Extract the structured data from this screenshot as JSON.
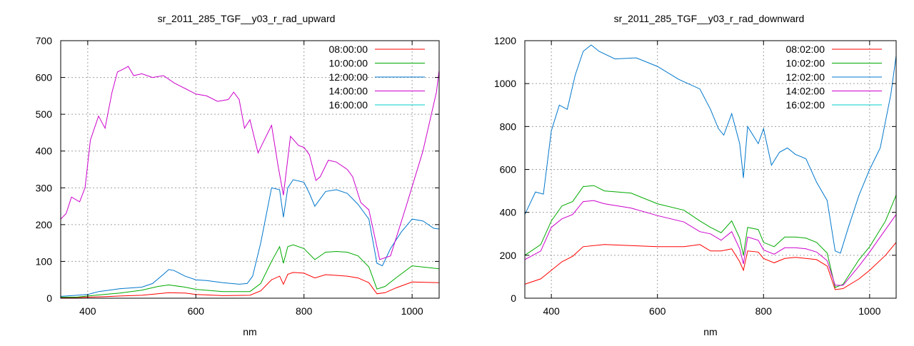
{
  "chart_data": [
    {
      "type": "line",
      "title": "sr_2011_285_TGF__y03_r_rad_upward",
      "xlabel": "nm",
      "ylabel": "",
      "xlim": [
        350,
        1050
      ],
      "ylim": [
        0,
        700
      ],
      "xticks": [
        400,
        600,
        800,
        1000
      ],
      "yticks": [
        0,
        100,
        200,
        300,
        400,
        500,
        600,
        700
      ],
      "grid": true,
      "legend_position": "top-right",
      "series": [
        {
          "name": "08:00:00",
          "color": "#ff0000",
          "x": [
            350,
            380,
            400,
            430,
            460,
            500,
            530,
            550,
            580,
            600,
            650,
            700,
            720,
            740,
            755,
            762,
            770,
            780,
            800,
            820,
            840,
            860,
            880,
            900,
            920,
            935,
            950,
            970,
            1000,
            1050
          ],
          "y": [
            2,
            2,
            3,
            4,
            6,
            8,
            12,
            15,
            14,
            10,
            7,
            8,
            20,
            50,
            60,
            38,
            65,
            70,
            68,
            55,
            64,
            62,
            60,
            55,
            42,
            12,
            15,
            28,
            44,
            42
          ]
        },
        {
          "name": "10:00:00",
          "color": "#00aa00",
          "x": [
            350,
            380,
            400,
            430,
            460,
            500,
            530,
            550,
            580,
            600,
            650,
            700,
            720,
            740,
            755,
            762,
            770,
            780,
            800,
            820,
            840,
            860,
            880,
            900,
            920,
            935,
            950,
            970,
            1000,
            1050
          ],
          "y": [
            3,
            3,
            6,
            10,
            14,
            22,
            32,
            36,
            30,
            24,
            18,
            18,
            40,
            100,
            140,
            95,
            140,
            145,
            135,
            105,
            125,
            127,
            125,
            115,
            85,
            25,
            32,
            55,
            88,
            80
          ]
        },
        {
          "name": "12:00:00",
          "color": "#0077cc",
          "x": [
            350,
            380,
            400,
            420,
            440,
            460,
            480,
            500,
            520,
            540,
            550,
            560,
            580,
            600,
            620,
            650,
            680,
            695,
            705,
            720,
            740,
            755,
            762,
            770,
            780,
            800,
            810,
            820,
            840,
            860,
            880,
            900,
            920,
            935,
            945,
            960,
            980,
            1000,
            1020,
            1040,
            1050
          ],
          "y": [
            5,
            8,
            10,
            18,
            22,
            26,
            28,
            30,
            40,
            65,
            78,
            75,
            60,
            50,
            48,
            42,
            38,
            40,
            60,
            150,
            300,
            295,
            220,
            300,
            322,
            315,
            285,
            250,
            290,
            295,
            285,
            255,
            215,
            95,
            88,
            135,
            180,
            215,
            210,
            190,
            188
          ]
        },
        {
          "name": "14:00:00",
          "color": "#cc00cc",
          "x": [
            350,
            360,
            370,
            385,
            395,
            405,
            420,
            432,
            445,
            455,
            465,
            475,
            485,
            500,
            520,
            540,
            560,
            580,
            600,
            620,
            640,
            660,
            670,
            680,
            690,
            700,
            715,
            725,
            740,
            752,
            762,
            775,
            790,
            800,
            810,
            822,
            830,
            845,
            860,
            880,
            890,
            905,
            920,
            940,
            960,
            990,
            1020,
            1045,
            1050
          ],
          "y": [
            215,
            230,
            275,
            262,
            300,
            430,
            495,
            462,
            560,
            615,
            622,
            630,
            605,
            610,
            600,
            605,
            585,
            570,
            555,
            550,
            535,
            540,
            560,
            540,
            462,
            485,
            395,
            425,
            470,
            360,
            280,
            440,
            415,
            410,
            390,
            320,
            330,
            375,
            370,
            350,
            330,
            260,
            240,
            105,
            115,
            255,
            400,
            560,
            620
          ]
        },
        {
          "name": "16:00:00",
          "color": "#00cccc",
          "x": [],
          "y": []
        }
      ]
    },
    {
      "type": "line",
      "title": "sr_2011_285_TGF__y03_r_rad_downward",
      "xlabel": "nm",
      "ylabel": "",
      "xlim": [
        350,
        1050
      ],
      "ylim": [
        0,
        1200
      ],
      "xticks": [
        400,
        600,
        800,
        1000
      ],
      "yticks": [
        0,
        200,
        400,
        600,
        800,
        1000,
        1200
      ],
      "grid": true,
      "legend_position": "top-right",
      "series": [
        {
          "name": "08:02:00",
          "color": "#ff0000",
          "x": [
            350,
            380,
            400,
            420,
            440,
            460,
            500,
            550,
            600,
            650,
            680,
            700,
            720,
            740,
            755,
            762,
            770,
            790,
            800,
            820,
            840,
            860,
            880,
            900,
            920,
            935,
            950,
            980,
            1000,
            1030,
            1050
          ],
          "y": [
            65,
            90,
            130,
            170,
            195,
            240,
            250,
            245,
            240,
            240,
            250,
            220,
            220,
            230,
            170,
            130,
            220,
            215,
            185,
            165,
            185,
            190,
            185,
            180,
            150,
            40,
            45,
            90,
            130,
            200,
            260
          ]
        },
        {
          "name": "10:02:00",
          "color": "#00aa00",
          "x": [
            350,
            380,
            400,
            420,
            440,
            460,
            480,
            500,
            550,
            600,
            650,
            680,
            700,
            720,
            740,
            755,
            762,
            770,
            790,
            800,
            820,
            840,
            860,
            880,
            900,
            920,
            935,
            950,
            980,
            1000,
            1030,
            1050
          ],
          "y": [
            200,
            250,
            360,
            430,
            450,
            520,
            525,
            500,
            490,
            440,
            410,
            360,
            330,
            305,
            360,
            280,
            200,
            330,
            320,
            260,
            240,
            285,
            285,
            280,
            260,
            210,
            50,
            65,
            180,
            240,
            360,
            480
          ]
        },
        {
          "name": "12:02:00",
          "color": "#0077cc",
          "x": [
            350,
            370,
            385,
            400,
            415,
            430,
            445,
            460,
            475,
            490,
            520,
            560,
            600,
            640,
            680,
            700,
            715,
            725,
            740,
            755,
            762,
            770,
            790,
            800,
            815,
            830,
            845,
            860,
            880,
            900,
            920,
            935,
            945,
            960,
            980,
            1000,
            1020,
            1040,
            1050
          ],
          "y": [
            390,
            495,
            485,
            780,
            900,
            880,
            1040,
            1150,
            1180,
            1150,
            1115,
            1120,
            1080,
            1020,
            975,
            880,
            790,
            760,
            860,
            720,
            560,
            800,
            720,
            790,
            620,
            680,
            700,
            670,
            650,
            540,
            455,
            220,
            210,
            330,
            480,
            600,
            700,
            950,
            1130
          ]
        },
        {
          "name": "14:02:00",
          "color": "#cc00cc",
          "x": [
            350,
            380,
            400,
            420,
            440,
            460,
            480,
            500,
            550,
            600,
            650,
            680,
            700,
            720,
            740,
            755,
            762,
            770,
            790,
            800,
            820,
            840,
            860,
            880,
            900,
            920,
            935,
            950,
            980,
            1000,
            1030,
            1050
          ],
          "y": [
            180,
            220,
            330,
            370,
            390,
            450,
            455,
            440,
            420,
            385,
            355,
            310,
            300,
            270,
            310,
            230,
            160,
            285,
            270,
            225,
            205,
            235,
            235,
            230,
            215,
            175,
            60,
            60,
            150,
            215,
            320,
            390
          ]
        },
        {
          "name": "16:02:00",
          "color": "#00cccc",
          "x": [],
          "y": []
        }
      ]
    }
  ]
}
